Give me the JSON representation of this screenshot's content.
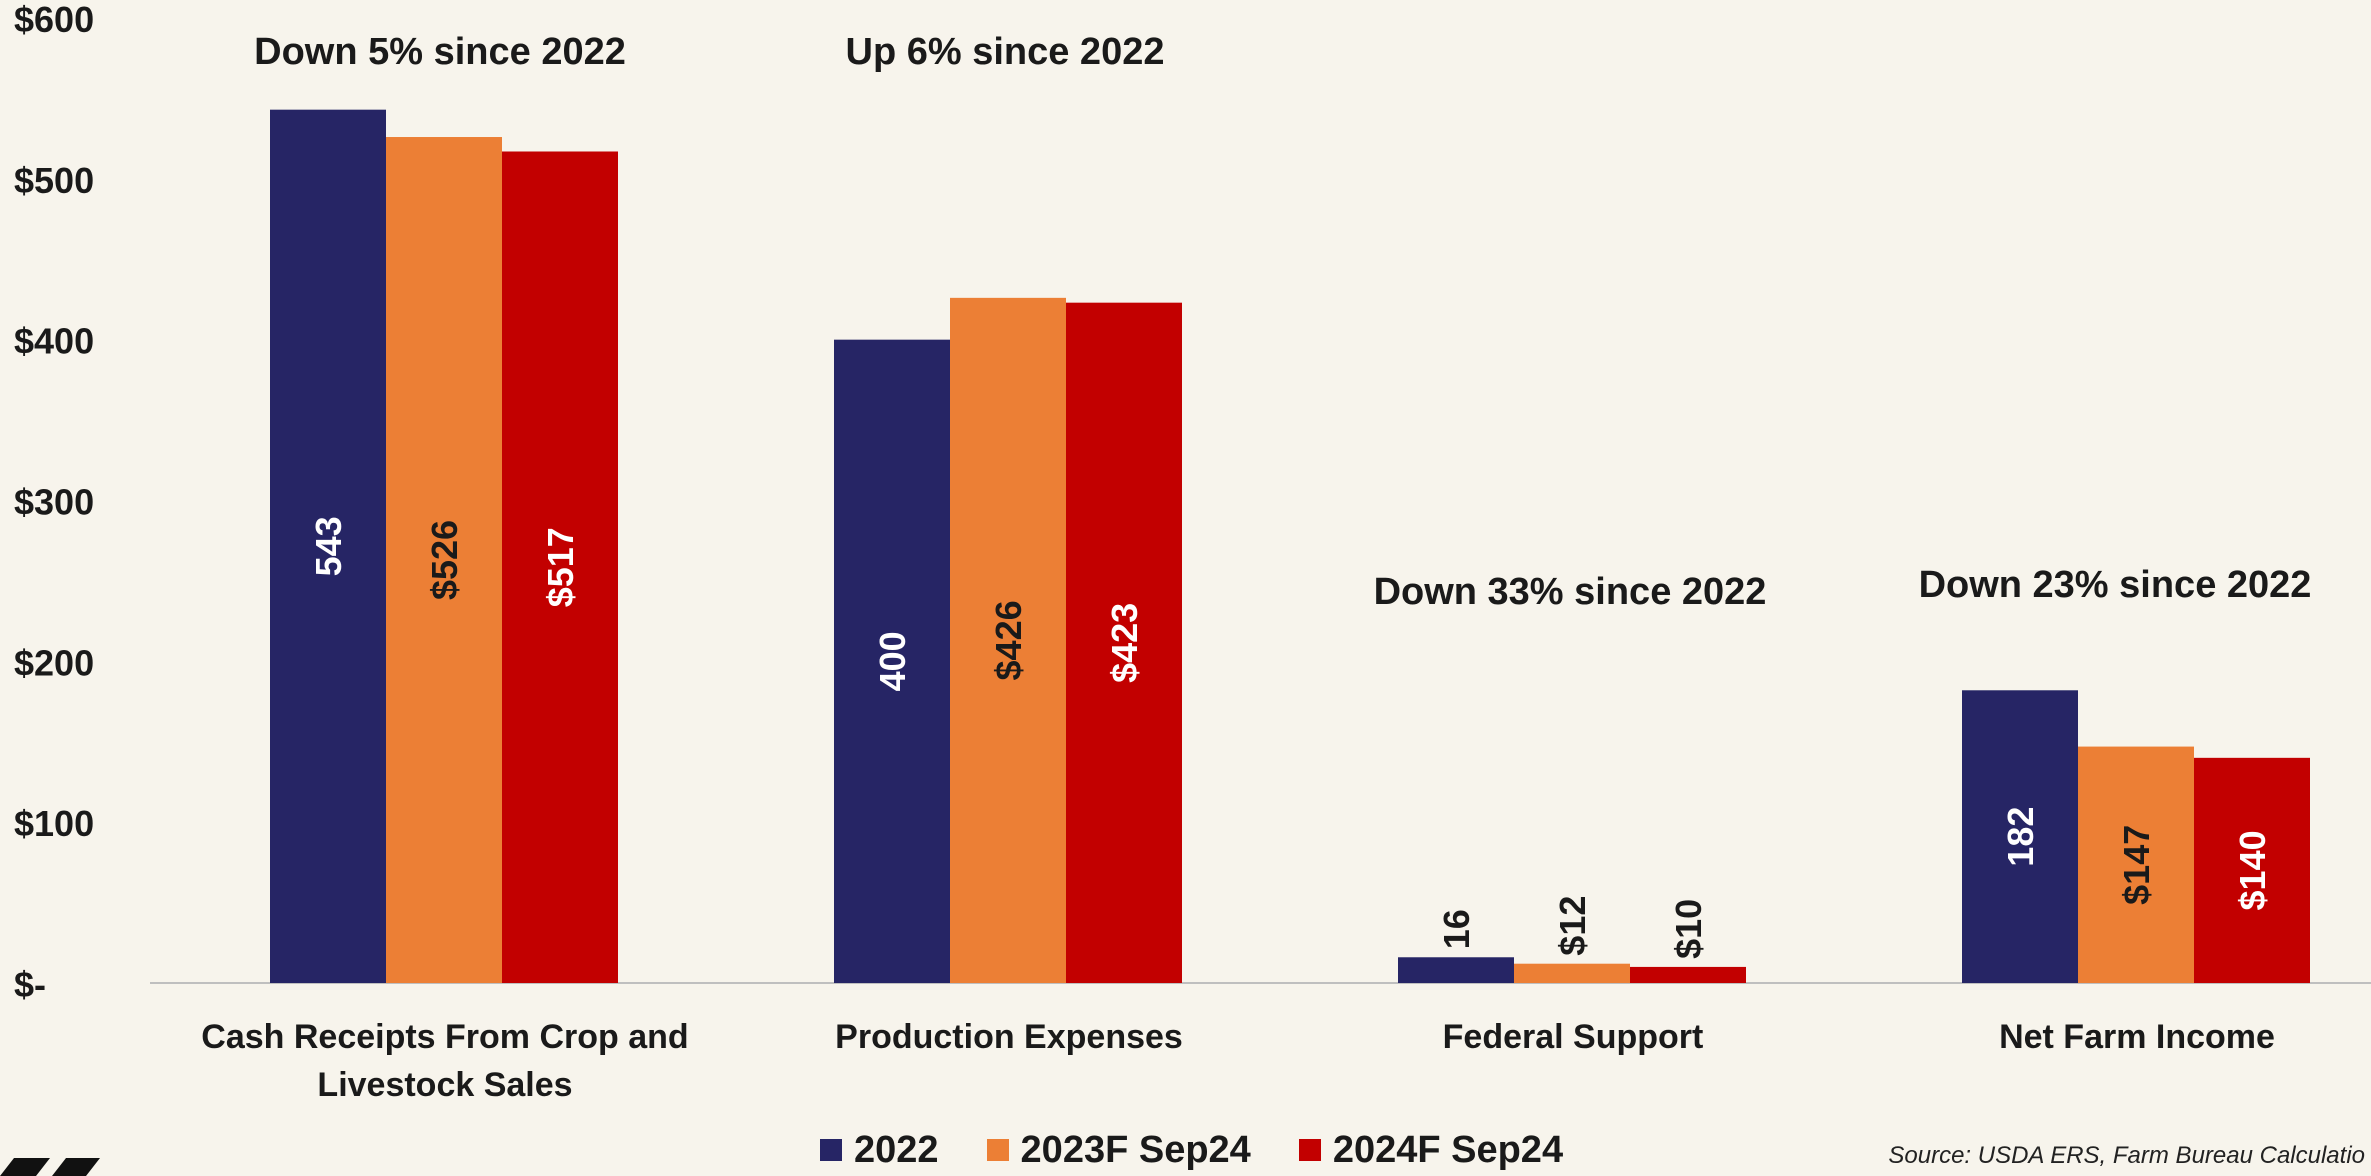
{
  "chart_data": {
    "type": "bar",
    "categories": [
      "Cash Receipts From Crop and Livestock Sales",
      "Production Expenses",
      "Federal Support",
      "Net Farm Income"
    ],
    "category_lines": [
      [
        "Cash Receipts From Crop and",
        "Livestock Sales"
      ],
      [
        "Production Expenses"
      ],
      [
        "Federal Support"
      ],
      [
        "Net Farm Income"
      ]
    ],
    "series": [
      {
        "name": "2022",
        "color": "#262565",
        "values": [
          543,
          400,
          16,
          182
        ],
        "labels": [
          "543",
          "400",
          "16",
          "182"
        ],
        "label_color": "#ffffff"
      },
      {
        "name": "2023F Sep24",
        "color": "#ec7f35",
        "values": [
          526,
          426,
          12,
          147
        ],
        "labels": [
          "$526",
          "$426",
          "$12",
          "$147"
        ],
        "label_color": "#1a1a1a"
      },
      {
        "name": "2024F Sep24",
        "color": "#c20000",
        "values": [
          517,
          423,
          10,
          140
        ],
        "labels": [
          "$517",
          "$423",
          "$10",
          "$140"
        ],
        "label_color": "#ffffff"
      }
    ],
    "annotations": [
      "Down 5% since 2022",
      "Up 6% since 2022",
      "Down 33% since 2022",
      "Down 23% since 2022"
    ],
    "ylim": [
      0,
      600
    ],
    "yticks": [
      0,
      100,
      200,
      300,
      400,
      500,
      600
    ],
    "ytick_labels": [
      "$-",
      "$100",
      "$200",
      "$300",
      "$400",
      "$500",
      "$600"
    ],
    "legend_position": "bottom",
    "grid": false
  },
  "source": "Source: USDA ERS, Farm Bureau Calculatio",
  "colors": {
    "background": "#f7f4ec",
    "axis": "#bfbfbf",
    "text": "#1a1a1a"
  }
}
